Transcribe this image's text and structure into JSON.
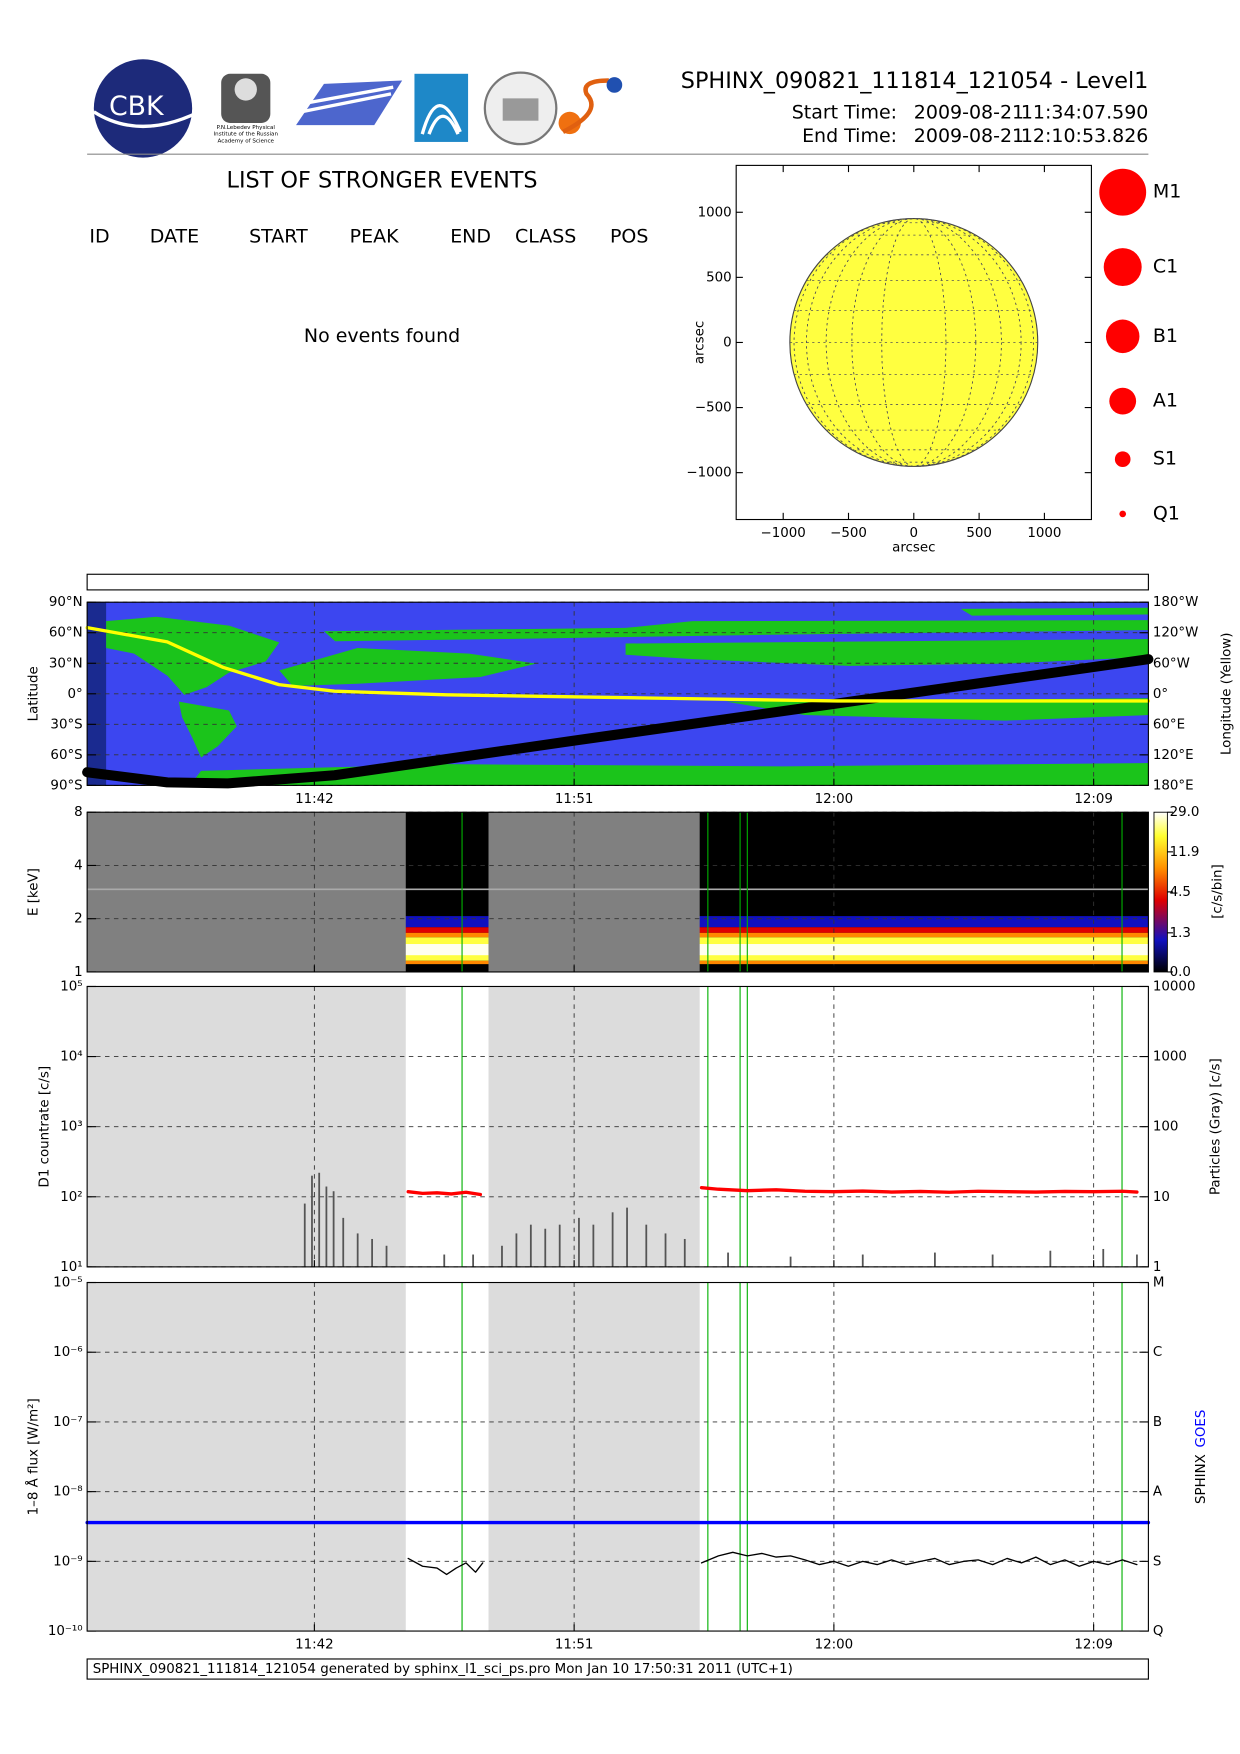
{
  "header": {
    "title": "SPHINX_090821_111814_121054 - Level1",
    "start_label": "Start Time:",
    "start_date": "2009-08-21",
    "start_time": "11:34:07.590",
    "end_label": "End Time:",
    "end_date": "2009-08-21",
    "end_time": "12:10:53.826",
    "logo_text": "CBK",
    "logo_caption": [
      "P.N.Lebedev Physical",
      "Institute of the Russian",
      "Academy of Science"
    ]
  },
  "events": {
    "title": "LIST OF STRONGER EVENTS",
    "columns": [
      "ID",
      "DATE",
      "START",
      "PEAK",
      "END",
      "CLASS",
      "POS"
    ],
    "message": "No events found"
  },
  "footer": "SPHINX_090821_111814_121054 generated by sphinx_l1_sci_ps.pro Mon Jan 10 17:50:31 2011 (UTC+1)",
  "chart_data": [
    {
      "type": "disk",
      "xlabel": "arcsec",
      "ylabel": "arcsec",
      "xlim": [
        -1360,
        1360
      ],
      "ylim": [
        -1360,
        1360
      ],
      "xticks": [
        {
          "value": -1000,
          "label": "−1000"
        },
        {
          "value": -500,
          "label": "−500"
        },
        0,
        500,
        1000
      ],
      "yticks": [
        {
          "value": -1000,
          "label": "−1000"
        },
        {
          "value": -500,
          "label": "−500"
        },
        0,
        500,
        1000
      ],
      "disk_radius": 949,
      "disk_color": "#ffff40",
      "legend": {
        "labels": [
          "M1",
          "C1",
          "B1",
          "A1",
          "S1",
          "Q1"
        ],
        "color": "#ff0000"
      }
    },
    {
      "type": "timeseries",
      "xlim": [
        "11:34:07.590",
        "12:10:53.826"
      ],
      "xticks": [
        "11:42",
        "11:51",
        "12:00",
        "12:09"
      ],
      "gaps": [
        [
          "11:34:07.590",
          "11:45:10"
        ],
        [
          "11:48:02",
          "11:55:21"
        ]
      ],
      "markers": [
        "11:47:07",
        "11:55:38",
        "11:56:45",
        "11:57:00",
        "12:09:59"
      ],
      "marker_color": "#00b000",
      "panels": [
        {
          "type": "track",
          "grid": true,
          "ylabel": "Latitude",
          "y2label": "Longitude (Yellow)",
          "ylim": [
            -90,
            90
          ],
          "yticks": [
            {
              "value": -90,
              "label": "90°S"
            },
            {
              "value": -60,
              "label": "60°S"
            },
            {
              "value": -30,
              "label": "30°S"
            },
            {
              "value": 0,
              "label": "0°"
            },
            {
              "value": 30,
              "label": "30°N"
            },
            {
              "value": 60,
              "label": "60°N"
            },
            {
              "value": 90,
              "label": "90°N"
            }
          ],
          "y2lim": [
            180,
            -180
          ],
          "y2ticks": [
            {
              "value": -180,
              "label": "180°W"
            },
            {
              "value": -120,
              "label": "120°W"
            },
            {
              "value": -60,
              "label": "60°W"
            },
            {
              "value": 0,
              "label": "0°"
            },
            {
              "value": 60,
              "label": "60°E"
            },
            {
              "value": 120,
              "label": "120°E"
            },
            {
              "value": 180,
              "label": "180°E"
            }
          ],
          "series": [
            {
              "color": "#000000",
              "x": [
                "11:34:07.590",
                "11:36:54",
                "11:39:00",
                "11:42:42",
                "11:51:00",
                "12:00:00",
                "12:10:53.826"
              ],
              "values": [
                -77,
                -87,
                -88,
                -80,
                -46,
                -10,
                34
              ]
            },
            {
              "color": "#ffff00",
              "axis": "y2",
              "x": [
                "11:34:07.590",
                "11:36:54",
                "11:38:50",
                "11:40:46",
                "11:42:42",
                "11:46:34",
                "11:54:20",
                "12:00:07",
                "12:10:53.826"
              ],
              "values": [
                -130,
                -102,
                -52,
                -18,
                -5,
                2,
                9,
                14,
                14
              ]
            }
          ]
        },
        {
          "type": "spectrogram",
          "grid": true,
          "log": true,
          "ylabel": "E [keV]",
          "ylim": [
            1,
            8
          ],
          "yticks": [
            1,
            2,
            4,
            8
          ],
          "colorbar": {
            "label": "[c/s/bin]",
            "clim": [
              0,
              29.0
            ],
            "ticks": [
              {
                "value": 29.0,
                "label": "29.0"
              },
              11.9,
              4.5,
              1.3,
              {
                "value": 0,
                "label": "0.0"
              }
            ]
          }
        },
        {
          "type": "line",
          "grid": true,
          "log": true,
          "ylabel": "D1 countrate [c/s]",
          "y2label": "Particles (Gray) [c/s]",
          "ylim": [
            10,
            100000
          ],
          "yticks": [
            {
              "value": 10,
              "label": "10¹"
            },
            {
              "value": 100,
              "label": "10²"
            },
            {
              "value": 1000,
              "label": "10³"
            },
            {
              "value": 10000,
              "label": "10⁴"
            },
            {
              "value": 100000,
              "label": "10⁵"
            }
          ],
          "y2lim": [
            1,
            10000
          ],
          "y2ticks": [
            1,
            10,
            100,
            1000,
            10000
          ],
          "series": [
            {
              "color": "#ff0000",
              "x": [
                "11:45:15",
                "11:45:45",
                "11:46:15",
                "11:46:45",
                "11:47:15",
                "11:47:45",
                "11:51:00",
                "11:55:25",
                "11:56:00",
                "11:57:00",
                "11:58:00",
                "11:59:00",
                "12:00:00",
                "12:01:00",
                "12:02:00",
                "12:03:00",
                "12:04:00",
                "12:05:00",
                "12:06:00",
                "12:07:00",
                "12:08:00",
                "12:09:00",
                "12:10:00",
                "12:10:30"
              ],
              "values": [
                118,
                112,
                114,
                110,
                116,
                108,
                null,
                135,
                128,
                122,
                126,
                120,
                118,
                121,
                117,
                119,
                116,
                120,
                118,
                117,
                119,
                118,
                120,
                117
              ]
            },
            {
              "color": "#555555",
              "axis": "y2",
              "type": "bar",
              "x": [
                "11:41:40",
                "11:41:55",
                "11:42:10",
                "11:42:25",
                "11:42:40",
                "11:43:00",
                "11:43:30",
                "11:44:00",
                "11:44:30",
                "11:46:30",
                "11:47:30",
                "11:48:30",
                "11:49:00",
                "11:49:30",
                "11:50:00",
                "11:50:30",
                "11:51:10",
                "11:51:40",
                "11:52:20",
                "11:52:50",
                "11:53:30",
                "11:54:10",
                "11:54:50",
                "11:56:20",
                "11:58:30",
                "12:01:00",
                "12:03:30",
                "12:05:30",
                "12:07:30",
                "12:09:20",
                "12:10:30"
              ],
              "values": [
                8,
                20,
                22,
                14,
                12,
                5,
                3,
                2.5,
                2,
                1.5,
                1.5,
                2,
                3,
                4,
                3.5,
                4,
                5,
                4,
                6,
                7,
                4,
                3,
                2.5,
                1.6,
                1.4,
                1.5,
                1.6,
                1.5,
                1.7,
                1.8,
                1.5
              ]
            }
          ]
        },
        {
          "type": "line",
          "grid": true,
          "log": true,
          "ylabel": "1–8 Å flux [W/m²]",
          "y2labels": [
            {
              "text": "SPHINX",
              "color": "#000000"
            },
            {
              "text": "GOES",
              "color": "#0000ff"
            }
          ],
          "ylim": [
            1e-10,
            1e-05
          ],
          "yticks": [
            {
              "value": 1e-10,
              "label": "10⁻¹⁰"
            },
            {
              "value": 1e-09,
              "label": "10⁻⁹"
            },
            {
              "value": 1e-08,
              "label": "10⁻⁸"
            },
            {
              "value": 1e-07,
              "label": "10⁻⁷"
            },
            {
              "value": 1e-06,
              "label": "10⁻⁶"
            },
            {
              "value": 1e-05,
              "label": "10⁻⁵"
            }
          ],
          "y2lim": [
            1e-10,
            1e-05
          ],
          "y2ticks": [
            {
              "value": 1e-10,
              "label": "Q"
            },
            {
              "value": 1e-09,
              "label": "S"
            },
            {
              "value": 1e-08,
              "label": "A"
            },
            {
              "value": 1e-07,
              "label": "B"
            },
            {
              "value": 1e-06,
              "label": "C"
            },
            {
              "value": 1e-05,
              "label": "M"
            }
          ],
          "series": [
            {
              "color": "#0000ff",
              "x": [
                "11:34:07.590",
                "12:10:53.826"
              ],
              "values": [
                3.6e-09,
                3.6e-09
              ]
            },
            {
              "color": "#000000",
              "x": [
                "11:45:15",
                "11:45:45",
                "11:46:15",
                "11:46:35",
                "11:46:55",
                "11:47:15",
                "11:47:35",
                "11:47:50",
                "11:51:00",
                "11:55:25",
                "11:56:00",
                "11:56:30",
                "11:57:00",
                "11:57:30",
                "11:58:00",
                "11:58:30",
                "11:59:00",
                "11:59:30",
                "12:00:00",
                "12:00:30",
                "12:01:00",
                "12:01:30",
                "12:02:00",
                "12:02:30",
                "12:03:00",
                "12:03:30",
                "12:04:00",
                "12:04:30",
                "12:05:00",
                "12:05:30",
                "12:06:00",
                "12:06:30",
                "12:07:00",
                "12:07:30",
                "12:08:00",
                "12:08:30",
                "12:09:00",
                "12:09:30",
                "12:10:00",
                "12:10:30"
              ],
              "values": [
                1.1e-09,
                8.5e-10,
                8e-10,
                6.5e-10,
                8e-10,
                9.5e-10,
                7e-10,
                9.5e-10,
                null,
                9.5e-10,
                1.2e-09,
                1.35e-09,
                1.2e-09,
                1.3e-09,
                1.15e-09,
                1.2e-09,
                1.05e-09,
                9e-10,
                1e-09,
                8.5e-10,
                1e-09,
                9e-10,
                1.05e-09,
                9e-10,
                1e-09,
                1.1e-09,
                9e-10,
                1e-09,
                1.05e-09,
                9e-10,
                1.1e-09,
                9.5e-10,
                1.15e-09,
                9e-10,
                1.05e-09,
                8.5e-10,
                1e-09,
                9e-10,
                1.05e-09,
                9e-10
              ]
            }
          ]
        }
      ]
    }
  ]
}
